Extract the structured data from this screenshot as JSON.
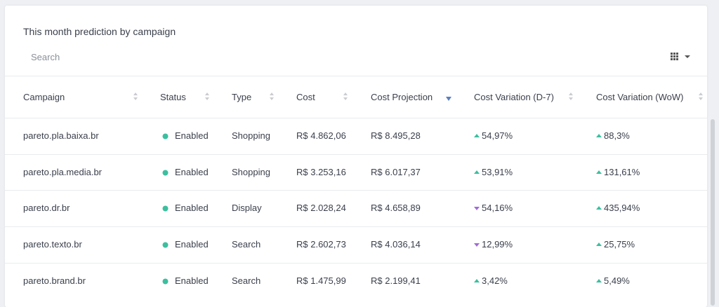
{
  "header": {
    "title": "This month prediction by campaign",
    "search_placeholder": "Search"
  },
  "table": {
    "columns": [
      "Campaign",
      "Status",
      "Type",
      "Cost",
      "Cost Projection",
      "Cost Variation (D-7)",
      "Cost Variation (WoW)"
    ],
    "sorted_by": 4,
    "rows": [
      [
        "pareto.pla.baixa.br",
        "Enabled",
        "Shopping",
        "R$ 4.862,06",
        "R$ 8.495,28",
        "54,97%",
        "88,3%"
      ],
      [
        "pareto.pla.media.br",
        "Enabled",
        "Shopping",
        "R$ 3.253,16",
        "R$ 6.017,37",
        "53,91%",
        "131,61%"
      ],
      [
        "pareto.dr.br",
        "Enabled",
        "Display",
        "R$ 2.028,24",
        "R$ 4.658,89",
        "54,16%",
        "435,94%"
      ],
      [
        "pareto.texto.br",
        "Enabled",
        "Search",
        "R$ 2.602,73",
        "R$ 4.036,14",
        "12,99%",
        "25,75%"
      ],
      [
        "pareto.brand.br",
        "Enabled",
        "Search",
        "R$ 1.475,99",
        "R$ 2.199,41",
        "3,42%",
        "5,49%"
      ]
    ],
    "trends": [
      [
        "up",
        "up"
      ],
      [
        "up",
        "up"
      ],
      [
        "down",
        "up"
      ],
      [
        "down",
        "up"
      ],
      [
        "up",
        "up"
      ]
    ]
  }
}
